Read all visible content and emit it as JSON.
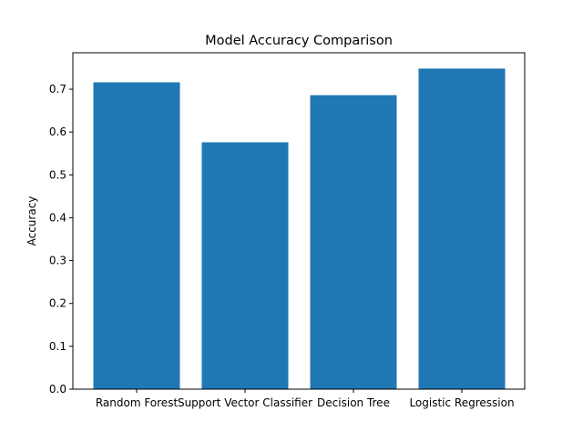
{
  "chart_data": {
    "type": "bar",
    "title": "Model Accuracy Comparison",
    "xlabel": "",
    "ylabel": "Accuracy",
    "categories": [
      "Random Forest",
      "Support Vector Classifier",
      "Decision Tree",
      "Logistic Regression"
    ],
    "values": [
      0.716,
      0.576,
      0.686,
      0.748
    ],
    "ylim": [
      0,
      0.785
    ],
    "yticks": [
      0.0,
      0.1,
      0.2,
      0.3,
      0.4,
      0.5,
      0.6,
      0.7
    ],
    "ytick_labels": [
      "0.0",
      "0.1",
      "0.2",
      "0.3",
      "0.4",
      "0.5",
      "0.6",
      "0.7"
    ],
    "bar_color": "#1f77b4",
    "grid": false,
    "legend": "none"
  }
}
